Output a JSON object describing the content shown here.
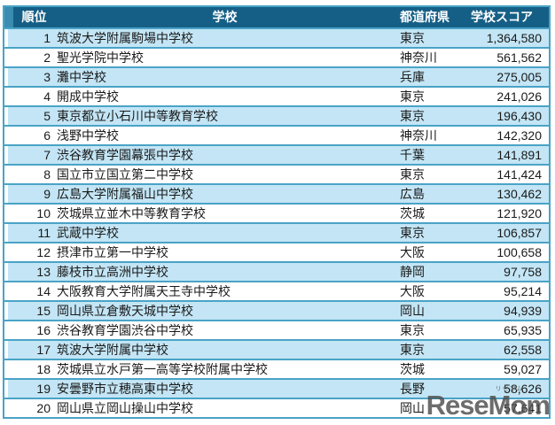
{
  "chart_data": {
    "type": "table",
    "columns": [
      "順位",
      "学校",
      "都道府県",
      "学校スコア"
    ],
    "rows": [
      {
        "rank": "1",
        "school": "筑波大学附属駒場中学校",
        "prefecture": "東京",
        "score": "1,364,580"
      },
      {
        "rank": "2",
        "school": "聖光学院中学校",
        "prefecture": "神奈川",
        "score": "561,562"
      },
      {
        "rank": "3",
        "school": "灘中学校",
        "prefecture": "兵庫",
        "score": "275,005"
      },
      {
        "rank": "4",
        "school": "開成中学校",
        "prefecture": "東京",
        "score": "241,026"
      },
      {
        "rank": "5",
        "school": "東京都立小石川中等教育学校",
        "prefecture": "東京",
        "score": "196,430"
      },
      {
        "rank": "6",
        "school": "浅野中学校",
        "prefecture": "神奈川",
        "score": "142,320"
      },
      {
        "rank": "7",
        "school": "渋谷教育学園幕張中学校",
        "prefecture": "千葉",
        "score": "141,891"
      },
      {
        "rank": "8",
        "school": "国立市立国立第二中学校",
        "prefecture": "東京",
        "score": "141,424"
      },
      {
        "rank": "9",
        "school": "広島大学附属福山中学校",
        "prefecture": "広島",
        "score": "130,462"
      },
      {
        "rank": "10",
        "school": "茨城県立並木中等教育学校",
        "prefecture": "茨城",
        "score": "121,920"
      },
      {
        "rank": "11",
        "school": "武蔵中学校",
        "prefecture": "東京",
        "score": "106,857"
      },
      {
        "rank": "12",
        "school": "摂津市立第一中学校",
        "prefecture": "大阪",
        "score": "100,658"
      },
      {
        "rank": "13",
        "school": "藤枝市立高洲中学校",
        "prefecture": "静岡",
        "score": "97,758"
      },
      {
        "rank": "14",
        "school": "大阪教育大学附属天王寺中学校",
        "prefecture": "大阪",
        "score": "95,214"
      },
      {
        "rank": "15",
        "school": "岡山県立倉敷天城中学校",
        "prefecture": "岡山",
        "score": "94,939"
      },
      {
        "rank": "16",
        "school": "渋谷教育学園渋谷中学校",
        "prefecture": "東京",
        "score": "65,935"
      },
      {
        "rank": "17",
        "school": "筑波大学附属中学校",
        "prefecture": "東京",
        "score": "62,558"
      },
      {
        "rank": "18",
        "school": "茨城県立水戸第一高等学校附属中学校",
        "prefecture": "茨城",
        "score": "59,027"
      },
      {
        "rank": "19",
        "school": "安曇野市立穂高東中学校",
        "prefecture": "長野",
        "score": "58,626"
      },
      {
        "rank": "20",
        "school": "岡山県立岡山操山中学校",
        "prefecture": "岡山",
        "score": "57,641"
      }
    ]
  },
  "watermark": {
    "text": "ReseMom",
    "ruby": "リセマム"
  },
  "colors": {
    "header_bg": "#155f86",
    "header_accent": "#3a8cb0",
    "border": "#4aa3c6",
    "stripe": "#c3e5f5",
    "row_white": "#ffffff",
    "header_text": "#ffffff",
    "body_text": "#1a1a1a",
    "watermark": "#4d4d4d"
  }
}
